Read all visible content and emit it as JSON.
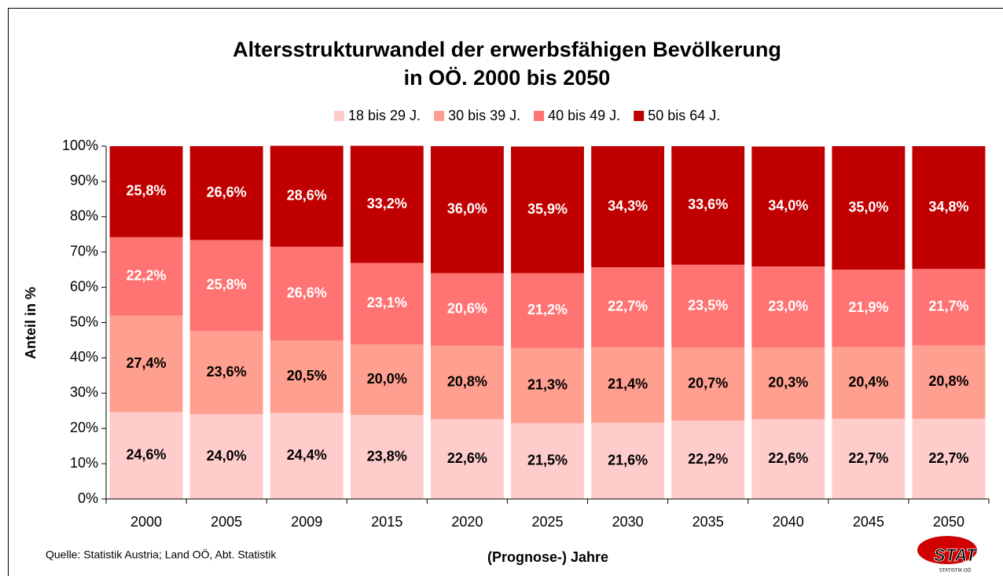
{
  "chart_data": {
    "type": "stacked_bar",
    "title_lines": [
      "Altersstrukturwandel der erwerbsfähigen Bevölkerung",
      "in OÖ. 2000 bis 2050"
    ],
    "y_label": "Anteil in %",
    "x_label": "(Prognose-) Jahre",
    "source": "Quelle: Statistik Austria; Land OÖ, Abt. Statistik",
    "logo": {
      "text": "STAT",
      "subtext": "STATISTIK OÖ"
    },
    "categories": [
      "2000",
      "2005",
      "2009",
      "2015",
      "2020",
      "2025",
      "2030",
      "2035",
      "2040",
      "2045",
      "2050"
    ],
    "series": [
      {
        "name": "18 bis 29 J.",
        "color": "#ffcccc",
        "label_color": "#000000",
        "values": [
          24.6,
          24.0,
          24.4,
          23.8,
          22.6,
          21.5,
          21.6,
          22.2,
          22.6,
          22.7,
          22.7
        ],
        "value_labels": [
          "24,6%",
          "24,0%",
          "24,4%",
          "23,8%",
          "22,6%",
          "21,5%",
          "21,6%",
          "22,2%",
          "22,6%",
          "22,7%",
          "22,7%"
        ]
      },
      {
        "name": "30 bis 39 J.",
        "color": "#ff9f8f",
        "label_color": "#000000",
        "values": [
          27.4,
          23.6,
          20.5,
          20.0,
          20.8,
          21.3,
          21.4,
          20.7,
          20.3,
          20.4,
          20.8
        ],
        "value_labels": [
          "27,4%",
          "23,6%",
          "20,5%",
          "20,0%",
          "20,8%",
          "21,3%",
          "21,4%",
          "20,7%",
          "20,3%",
          "20,4%",
          "20,8%"
        ]
      },
      {
        "name": "40 bis 49 J.",
        "color": "#ff7373",
        "label_color": "#ffffff",
        "values": [
          22.2,
          25.8,
          26.6,
          23.1,
          20.6,
          21.2,
          22.7,
          23.5,
          23.0,
          21.9,
          21.7
        ],
        "value_labels": [
          "22,2%",
          "25,8%",
          "26,6%",
          "23,1%",
          "20,6%",
          "21,2%",
          "22,7%",
          "23,5%",
          "23,0%",
          "21,9%",
          "21,7%"
        ]
      },
      {
        "name": "50 bis 64 J.",
        "color": "#c00000",
        "label_color": "#ffffff",
        "values": [
          25.8,
          26.6,
          28.6,
          33.2,
          36.0,
          35.9,
          34.3,
          33.6,
          34.0,
          35.0,
          34.8
        ],
        "value_labels": [
          "25,8%",
          "26,6%",
          "28,6%",
          "33,2%",
          "36,0%",
          "35,9%",
          "34,3%",
          "33,6%",
          "34,0%",
          "35,0%",
          "34,8%"
        ]
      }
    ],
    "ylim": [
      0,
      100
    ],
    "yticks": [
      {
        "value": 0,
        "label": "0%"
      },
      {
        "value": 10,
        "label": "10%"
      },
      {
        "value": 20,
        "label": "20%"
      },
      {
        "value": 30,
        "label": "30%"
      },
      {
        "value": 40,
        "label": "40%"
      },
      {
        "value": 50,
        "label": "50%"
      },
      {
        "value": 60,
        "label": "60%"
      },
      {
        "value": 70,
        "label": "70%"
      },
      {
        "value": 80,
        "label": "80%"
      },
      {
        "value": 90,
        "label": "90%"
      },
      {
        "value": 100,
        "label": "100%"
      }
    ],
    "legend": "top",
    "grid": false
  }
}
